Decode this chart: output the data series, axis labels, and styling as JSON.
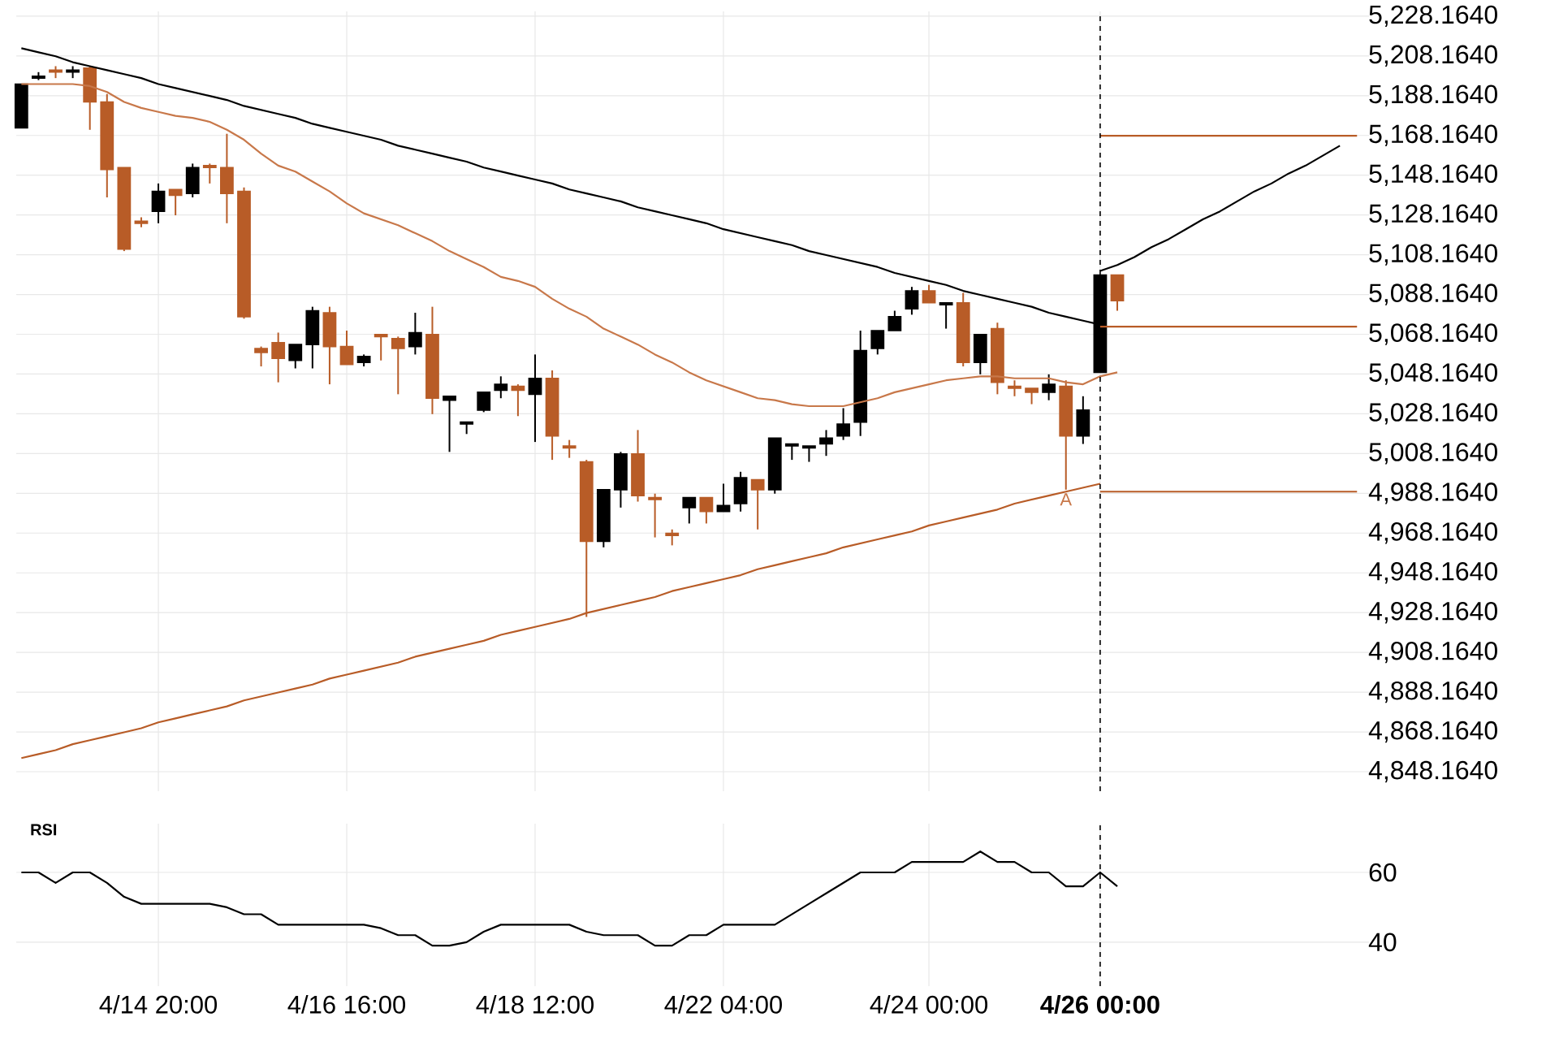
{
  "chart_data": [
    {
      "type": "candlestick",
      "grid": true,
      "tick_labels": "y",
      "categories": [
        null,
        null,
        null,
        null,
        null,
        null,
        null,
        null,
        "4/14 20:00",
        null,
        null,
        null,
        null,
        null,
        null,
        null,
        null,
        null,
        null,
        "4/16 16:00",
        null,
        null,
        null,
        null,
        null,
        null,
        null,
        null,
        null,
        null,
        "4/18 12:00",
        null,
        null,
        null,
        null,
        null,
        null,
        null,
        null,
        null,
        null,
        "4/22 04:00",
        null,
        null,
        null,
        null,
        null,
        null,
        null,
        null,
        null,
        null,
        null,
        "4/24 00:00",
        null,
        null,
        null,
        null,
        null,
        null,
        null,
        null,
        null,
        "4/26 00:00",
        null,
        null,
        null,
        null,
        null,
        null,
        null,
        null,
        null,
        null,
        null,
        null,
        null,
        null,
        null
      ],
      "ohlc": [
        [
          5172,
          5194,
          5172,
          5194
        ],
        [
          5197,
          5200,
          5196,
          5198
        ],
        [
          5201,
          5203,
          5197,
          5200
        ],
        [
          5200,
          5203,
          5197,
          5201
        ],
        [
          5202,
          5203,
          5171,
          5185
        ],
        [
          5185,
          5189,
          5137,
          5151
        ],
        [
          5152,
          5152,
          5110,
          5111
        ],
        [
          5125,
          5127,
          5122,
          5124
        ],
        [
          5130,
          5144,
          5124,
          5140
        ],
        [
          5141,
          5141,
          5128,
          5138
        ],
        [
          5139,
          5154,
          5137,
          5152
        ],
        [
          5153,
          5154,
          5144,
          5152
        ],
        [
          5152,
          5169,
          5124,
          5139
        ],
        [
          5140,
          5142,
          5076,
          5077
        ],
        [
          5061,
          5062,
          5052,
          5059
        ],
        [
          5064,
          5069,
          5044,
          5056
        ],
        [
          5055,
          5063,
          5051,
          5063
        ],
        [
          5063,
          5082,
          5051,
          5080
        ],
        [
          5079,
          5082,
          5043,
          5062
        ],
        [
          5062,
          5070,
          5053,
          5053
        ],
        [
          5054,
          5058,
          5052,
          5057
        ],
        [
          5068,
          5068,
          5055,
          5067
        ],
        [
          5066,
          5067,
          5038,
          5061
        ],
        [
          5062,
          5079,
          5058,
          5069
        ],
        [
          5068,
          5082,
          5028,
          5036
        ],
        [
          5035,
          5037,
          5009,
          5037
        ],
        [
          5023,
          5024,
          5018,
          5024
        ],
        [
          5030,
          5039,
          5029,
          5039
        ],
        [
          5040,
          5047,
          5036,
          5043
        ],
        [
          5042,
          5043,
          5027,
          5040
        ],
        [
          5038,
          5058,
          5014,
          5046
        ],
        [
          5046,
          5050,
          5005,
          5017
        ],
        [
          5012,
          5015,
          5006,
          5011
        ],
        [
          5004,
          5005,
          4926,
          4964
        ],
        [
          4964,
          4990,
          4961,
          4990
        ],
        [
          4990,
          5009,
          4981,
          5008
        ],
        [
          5008,
          5020,
          4984,
          4987
        ],
        [
          4986,
          4988,
          4966,
          4985
        ],
        [
          4968,
          4970,
          4962,
          4967
        ],
        [
          4981,
          4986,
          4973,
          4986
        ],
        [
          4986,
          4986,
          4973,
          4979
        ],
        [
          4979,
          4993,
          4979,
          4982
        ],
        [
          4983,
          4999,
          4979,
          4996
        ],
        [
          4995,
          4995,
          4970,
          4990
        ],
        [
          4990,
          5016,
          4988,
          5016
        ],
        [
          5012,
          5013,
          5005,
          5013
        ],
        [
          5011,
          5012,
          5004,
          5012
        ],
        [
          5013,
          5020,
          5007,
          5016
        ],
        [
          5017,
          5031,
          5015,
          5023
        ],
        [
          5024,
          5070,
          5017,
          5060
        ],
        [
          5061,
          5070,
          5058,
          5070
        ],
        [
          5070,
          5080,
          5070,
          5077
        ],
        [
          5081,
          5092,
          5078,
          5090
        ],
        [
          5090,
          5093,
          5084,
          5084
        ],
        [
          5083,
          5084,
          5071,
          5084
        ],
        [
          5084,
          5089,
          5052,
          5054
        ],
        [
          5054,
          5068,
          5048,
          5068
        ],
        [
          5071,
          5074,
          5038,
          5044
        ],
        [
          5042,
          5045,
          5037,
          5041
        ],
        [
          5041,
          5041,
          5033,
          5039
        ],
        [
          5039,
          5048,
          5035,
          5043
        ],
        [
          5042,
          5045,
          4990,
          5017
        ],
        [
          5017,
          5037,
          5013,
          5030
        ],
        [
          5049,
          5098,
          5049,
          5098
        ],
        [
          5098,
          5098,
          5080,
          5085
        ],
        null,
        null,
        null,
        null,
        null,
        null,
        null,
        null,
        null,
        null,
        null,
        null,
        null,
        null
      ],
      "colors": [
        "#000000",
        "#000000",
        "#b85c27",
        "#000000",
        "#b85c27",
        "#b85c27",
        "#b85c27",
        "#b85c27",
        "#000000",
        "#b85c27",
        "#000000",
        "#b85c27",
        "#b85c27",
        "#b85c27",
        "#b85c27",
        "#b85c27",
        "#000000",
        "#000000",
        "#b85c27",
        "#b85c27",
        "#000000",
        "#b85c27",
        "#b85c27",
        "#000000",
        "#b85c27",
        "#000000",
        "#000000",
        "#000000",
        "#000000",
        "#b85c27",
        "#000000",
        "#b85c27",
        "#b85c27",
        "#b85c27",
        "#000000",
        "#000000",
        "#b85c27",
        "#b85c27",
        "#b85c27",
        "#000000",
        "#b85c27",
        "#000000",
        "#000000",
        "#b85c27",
        "#000000",
        "#000000",
        "#000000",
        "#000000",
        "#000000",
        "#000000",
        "#000000",
        "#000000",
        "#000000",
        "#b85c27",
        "#000000",
        "#b85c27",
        "#000000",
        "#b85c27",
        "#b85c27",
        "#b85c27",
        "#000000",
        "#b85c27",
        "#000000",
        "#000000",
        "#b85c27",
        null,
        null,
        null,
        null,
        null,
        null,
        null,
        null,
        null,
        null,
        null,
        null,
        null,
        null
      ],
      "series": [
        {
          "type": "line",
          "color": "#c8784a",
          "values": [
            5194,
            5194,
            5194,
            5194,
            5193,
            5190,
            5185,
            5182,
            5180,
            5178,
            5177,
            5175,
            5171,
            5166,
            5159,
            5153,
            5150,
            5145,
            5140,
            5134,
            5129,
            5126,
            5123,
            5119,
            5115,
            5110,
            5106,
            5102,
            5097,
            5095,
            5092,
            5086,
            5081,
            5077,
            5071,
            5067,
            5063,
            5058,
            5054,
            5049,
            5045,
            5042,
            5039,
            5036,
            5035,
            5033,
            5032,
            5032,
            5032,
            5034,
            5036,
            5039,
            5041,
            5043,
            5045,
            5046,
            5047,
            5047,
            5046,
            5046,
            5046,
            5044,
            5043,
            5047,
            5049,
            null,
            null,
            null,
            null,
            null,
            null,
            null,
            null,
            null,
            null,
            null,
            null,
            null,
            null
          ]
        },
        {
          "type": "line",
          "color": "#000000",
          "values": [
            5212,
            5210,
            5208,
            5205,
            5203,
            5201,
            5199,
            5197,
            5194,
            5192,
            5190,
            5188,
            5186,
            5183,
            5181,
            5179,
            5177,
            5174,
            5172,
            5170,
            5168,
            5166,
            5163,
            5161,
            5159,
            5157,
            5155,
            5152,
            5150,
            5148,
            5146,
            5144,
            5141,
            5139,
            5137,
            5135,
            5132,
            5130,
            5128,
            5126,
            5124,
            5121,
            5119,
            5117,
            5115,
            5113,
            5110,
            5108,
            5106,
            5104,
            5102,
            5099,
            5097,
            5095,
            5093,
            5090,
            5088,
            5086,
            5084,
            5082,
            5079,
            5077,
            5075,
            5073,
            null,
            null,
            null,
            null,
            null,
            null,
            null,
            null,
            null,
            null,
            null,
            null,
            null,
            null,
            null
          ]
        },
        {
          "type": "line",
          "color": "#b85c27",
          "values": [
            4855,
            4857,
            4859,
            4862,
            4864,
            4866,
            4868,
            4870,
            4873,
            4875,
            4877,
            4879,
            4881,
            4884,
            4886,
            4888,
            4890,
            4892,
            4895,
            4897,
            4899,
            4901,
            4903,
            4906,
            4908,
            4910,
            4912,
            4914,
            4917,
            4919,
            4921,
            4923,
            4925,
            4928,
            4930,
            4932,
            4934,
            4936,
            4939,
            4941,
            4943,
            4945,
            4947,
            4950,
            4952,
            4954,
            4956,
            4958,
            4961,
            4963,
            4965,
            4967,
            4969,
            4972,
            4974,
            4976,
            4978,
            4980,
            4983,
            4985,
            4987,
            4989,
            4991,
            4993,
            null,
            null,
            null,
            null,
            null,
            null,
            null,
            null,
            null,
            null,
            null,
            null,
            null,
            null,
            null
          ]
        },
        {
          "type": "line",
          "color": "#000000",
          "values": [
            null,
            null,
            null,
            null,
            null,
            null,
            null,
            null,
            null,
            null,
            null,
            null,
            null,
            null,
            null,
            null,
            null,
            null,
            null,
            null,
            null,
            null,
            null,
            null,
            null,
            null,
            null,
            null,
            null,
            null,
            null,
            null,
            null,
            null,
            null,
            null,
            null,
            null,
            null,
            null,
            null,
            null,
            null,
            null,
            null,
            null,
            null,
            null,
            null,
            null,
            null,
            null,
            null,
            null,
            null,
            null,
            null,
            null,
            null,
            null,
            null,
            null,
            null,
            5100,
            5103,
            5107,
            5112,
            5116,
            5121,
            5126,
            5130,
            5135,
            5140,
            5144,
            5149,
            5153,
            5158,
            5163,
            null
          ]
        },
        {
          "type": "line",
          "color": "#b85c27",
          "values": [
            null,
            null,
            null,
            null,
            null,
            null,
            null,
            null,
            null,
            null,
            null,
            null,
            null,
            null,
            null,
            null,
            null,
            null,
            null,
            null,
            null,
            null,
            null,
            null,
            null,
            null,
            null,
            null,
            null,
            null,
            null,
            null,
            null,
            null,
            null,
            null,
            null,
            null,
            null,
            null,
            null,
            null,
            null,
            null,
            null,
            null,
            null,
            null,
            null,
            null,
            null,
            null,
            null,
            null,
            null,
            null,
            null,
            null,
            null,
            null,
            null,
            null,
            null,
            5168,
            5168,
            5168,
            5168,
            5168,
            5168,
            5168,
            5168,
            5168,
            5168,
            5168,
            5168,
            5168,
            5168,
            5168,
            5168
          ]
        },
        {
          "type": "line",
          "color": "#b85c27",
          "values": [
            null,
            null,
            null,
            null,
            null,
            null,
            null,
            null,
            null,
            null,
            null,
            null,
            null,
            null,
            null,
            null,
            null,
            null,
            null,
            null,
            null,
            null,
            null,
            null,
            null,
            null,
            null,
            null,
            null,
            null,
            null,
            null,
            null,
            null,
            null,
            null,
            null,
            null,
            null,
            null,
            null,
            null,
            null,
            null,
            null,
            null,
            null,
            null,
            null,
            null,
            null,
            null,
            null,
            null,
            null,
            null,
            null,
            null,
            null,
            null,
            null,
            null,
            null,
            5072,
            5072,
            5072,
            5072,
            5072,
            5072,
            5072,
            5072,
            5072,
            5072,
            5072,
            5072,
            5072,
            5072,
            5072,
            5072
          ]
        },
        {
          "type": "line",
          "color": "#b85c27",
          "values": [
            null,
            null,
            null,
            null,
            null,
            null,
            null,
            null,
            null,
            null,
            null,
            null,
            null,
            null,
            null,
            null,
            null,
            null,
            null,
            null,
            null,
            null,
            null,
            null,
            null,
            null,
            null,
            null,
            null,
            null,
            null,
            null,
            null,
            null,
            null,
            null,
            null,
            null,
            null,
            null,
            null,
            null,
            null,
            null,
            null,
            null,
            null,
            null,
            null,
            null,
            null,
            null,
            null,
            null,
            null,
            null,
            null,
            null,
            null,
            null,
            null,
            null,
            null,
            4989,
            4989,
            4989,
            4989,
            4989,
            4989,
            4989,
            4989,
            4989,
            4989,
            4989,
            4989,
            4989,
            4989,
            4989,
            4989
          ]
        }
      ],
      "annotations": [
        {
          "text": "A",
          "y": 4990
        }
      ],
      "ref_lines": [
        {
          "axis": "x",
          "value": "4/26 00:00",
          "color": "#000000",
          "line_style": "dashed"
        }
      ],
      "ylim": [
        4838.4,
        5230.6
      ],
      "yticks": [
        {
          "value": 4848.164,
          "label": "4,848.1640"
        },
        {
          "value": 4868.164,
          "label": "4,868.1640"
        },
        {
          "value": 4888.164,
          "label": "4,888.1640"
        },
        {
          "value": 4908.164,
          "label": "4,908.1640"
        },
        {
          "value": 4928.164,
          "label": "4,928.1640"
        },
        {
          "value": 4948.164,
          "label": "4,948.1640"
        },
        {
          "value": 4968.164,
          "label": "4,968.1640"
        },
        {
          "value": 4988.164,
          "label": "4,988.1640"
        },
        {
          "value": 5008.164,
          "label": "5,008.1640"
        },
        {
          "value": 5028.164,
          "label": "5,028.1640"
        },
        {
          "value": 5048.164,
          "label": "5,048.1640"
        },
        {
          "value": 5068.164,
          "label": "5,068.1640"
        },
        {
          "value": 5088.164,
          "label": "5,088.1640"
        },
        {
          "value": 5108.164,
          "label": "5,108.1640"
        },
        {
          "value": 5128.164,
          "label": "5,128.1640"
        },
        {
          "value": 5148.164,
          "label": "5,148.1640"
        },
        {
          "value": 5168.164,
          "label": "5,168.1640"
        },
        {
          "value": 5188.164,
          "label": "5,188.1640"
        },
        {
          "value": 5208.164,
          "label": "5,208.1640"
        },
        {
          "value": 5228.164,
          "label": "5,228.1640"
        }
      ]
    },
    {
      "type": "line",
      "title": "RSI",
      "grid": true,
      "color": "#000000",
      "categories": [
        null,
        null,
        null,
        null,
        null,
        null,
        null,
        null,
        "4/14 20:00",
        null,
        null,
        null,
        null,
        null,
        null,
        null,
        null,
        null,
        null,
        "4/16 16:00",
        null,
        null,
        null,
        null,
        null,
        null,
        null,
        null,
        null,
        null,
        "4/18 12:00",
        null,
        null,
        null,
        null,
        null,
        null,
        null,
        null,
        null,
        null,
        "4/22 04:00",
        null,
        null,
        null,
        null,
        null,
        null,
        null,
        null,
        null,
        null,
        null,
        "4/24 00:00",
        null,
        null,
        null,
        null,
        null,
        null,
        null,
        null,
        null,
        "4/26 00:00",
        null,
        null,
        null,
        null,
        null,
        null,
        null,
        null,
        null,
        null,
        null,
        null,
        null,
        null,
        null
      ],
      "values": [
        60,
        60,
        57,
        60,
        60,
        57,
        53,
        51,
        51,
        51,
        51,
        51,
        50,
        48,
        48,
        45,
        45,
        45,
        45,
        45,
        45,
        44,
        42,
        42,
        39,
        39,
        40,
        43,
        45,
        45,
        45,
        45,
        45,
        43,
        42,
        42,
        42,
        39,
        39,
        42,
        42,
        45,
        45,
        45,
        45,
        48,
        51,
        54,
        57,
        60,
        60,
        60,
        63,
        63,
        63,
        63,
        66,
        63,
        63,
        60,
        60,
        56,
        56,
        60,
        56,
        null,
        null,
        null,
        null,
        null,
        null,
        null,
        null,
        null,
        null,
        null,
        null,
        null,
        null
      ],
      "ref_lines": [
        {
          "axis": "x",
          "value": "4/26 00:00",
          "color": "#000000",
          "line_style": "dashed"
        }
      ],
      "ylim": [
        27.4,
        74.0
      ],
      "yticks": [
        40,
        60
      ]
    }
  ]
}
